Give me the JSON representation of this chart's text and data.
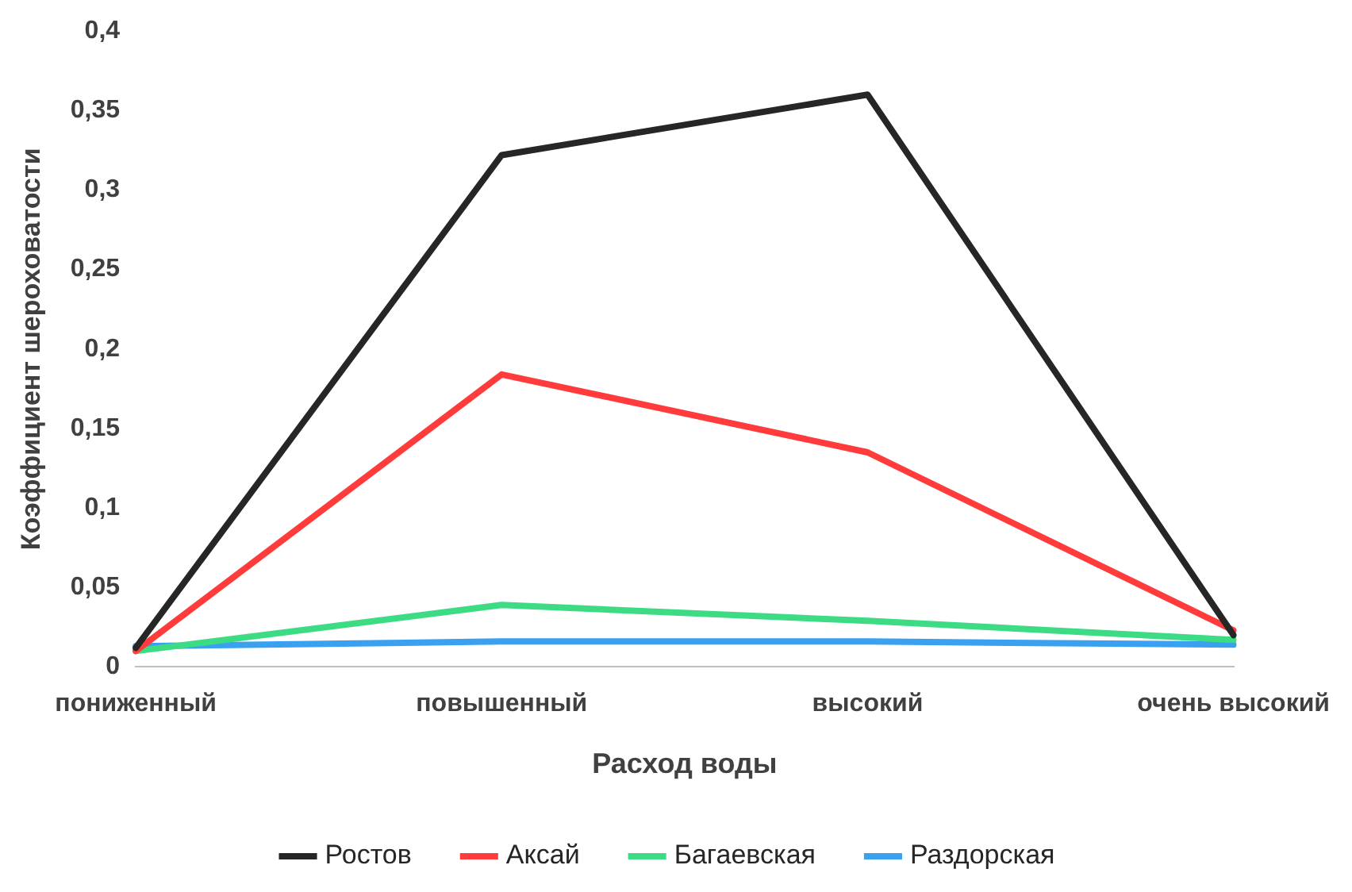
{
  "chart_data": {
    "type": "line",
    "xlabel": "Расход воды",
    "ylabel": "Коэффициент шероховатости",
    "categories": [
      "пониженный",
      "повышенный",
      "высокий",
      "очень высокий"
    ],
    "series": [
      {
        "name": "Ростов",
        "color": "#262626",
        "values": [
          0.012,
          0.322,
          0.36,
          0.02
        ]
      },
      {
        "name": "Аксай",
        "color": "#ff3b3b",
        "values": [
          0.01,
          0.184,
          0.135,
          0.023
        ]
      },
      {
        "name": "Багаевская",
        "color": "#3ddc84",
        "values": [
          0.01,
          0.039,
          0.029,
          0.017
        ]
      },
      {
        "name": "Раздорская",
        "color": "#3aa0f0",
        "values": [
          0.013,
          0.016,
          0.016,
          0.014
        ]
      }
    ],
    "ylim": [
      0,
      0.4
    ],
    "yticks": [
      0,
      {
        "value": 0.05,
        "label": "0,05"
      },
      {
        "value": 0.1,
        "label": "0,1"
      },
      {
        "value": 0.15,
        "label": "0,15"
      },
      {
        "value": 0.2,
        "label": "0,2"
      },
      {
        "value": 0.25,
        "label": "0,25"
      },
      {
        "value": 0.3,
        "label": "0,3"
      },
      {
        "value": 0.35,
        "label": "0,35"
      },
      {
        "value": 0.4,
        "label": "0,4"
      }
    ],
    "grid": false,
    "legend": "bottom",
    "marker": "none",
    "line_style": "solid"
  }
}
